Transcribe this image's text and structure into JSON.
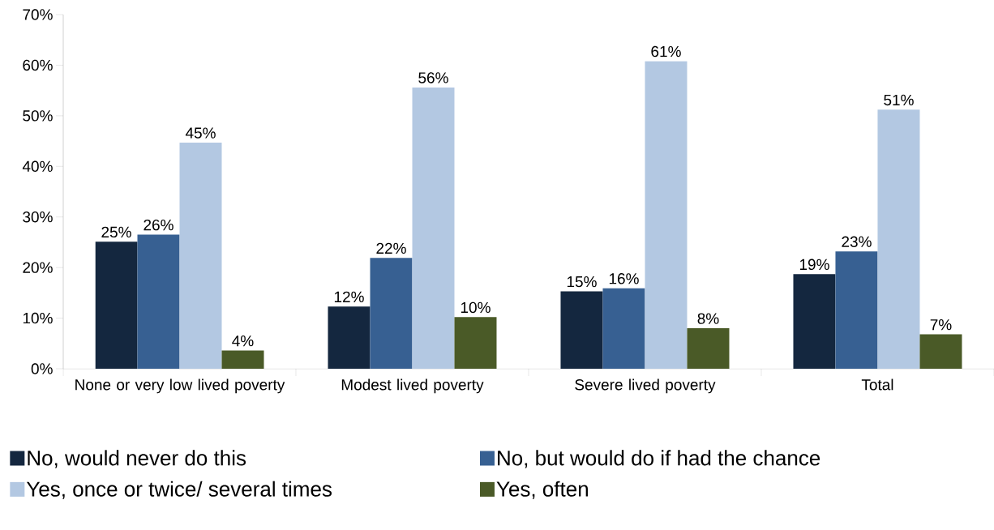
{
  "chart_data": {
    "type": "bar",
    "categories": [
      "None or very low lived poverty",
      "Modest lived poverty",
      "Severe lived poverty",
      "Total"
    ],
    "series": [
      {
        "name": "No, would never do this",
        "color": "#14273f",
        "values": [
          25.1,
          12.3,
          15.3,
          18.7
        ],
        "value_labels": [
          "25%",
          "12%",
          "15%",
          "19%"
        ]
      },
      {
        "name": "No, but would do if had the chance",
        "color": "#376092",
        "values": [
          26.5,
          21.9,
          15.9,
          23.2
        ],
        "value_labels": [
          "26%",
          "22%",
          "16%",
          "23%"
        ]
      },
      {
        "name": "Yes, once or twice/ several times",
        "color": "#b3c8e2",
        "values": [
          44.7,
          55.6,
          60.8,
          51.2
        ],
        "value_labels": [
          "45%",
          "56%",
          "61%",
          "51%"
        ]
      },
      {
        "name": "Yes, often",
        "color": "#4a5a27",
        "values": [
          3.6,
          10.2,
          8.0,
          6.8
        ],
        "value_labels": [
          "4%",
          "10%",
          "8%",
          "7%"
        ]
      }
    ],
    "ylim": [
      0,
      70
    ],
    "yticks": [
      {
        "value": 0,
        "label": "0%"
      },
      {
        "value": 10,
        "label": "10%"
      },
      {
        "value": 20,
        "label": "20%"
      },
      {
        "value": 30,
        "label": "30%"
      },
      {
        "value": 40,
        "label": "40%"
      },
      {
        "value": 50,
        "label": "50%"
      },
      {
        "value": 60,
        "label": "60%"
      },
      {
        "value": 70,
        "label": "70%"
      }
    ],
    "legend": "bottom",
    "grid": false
  }
}
